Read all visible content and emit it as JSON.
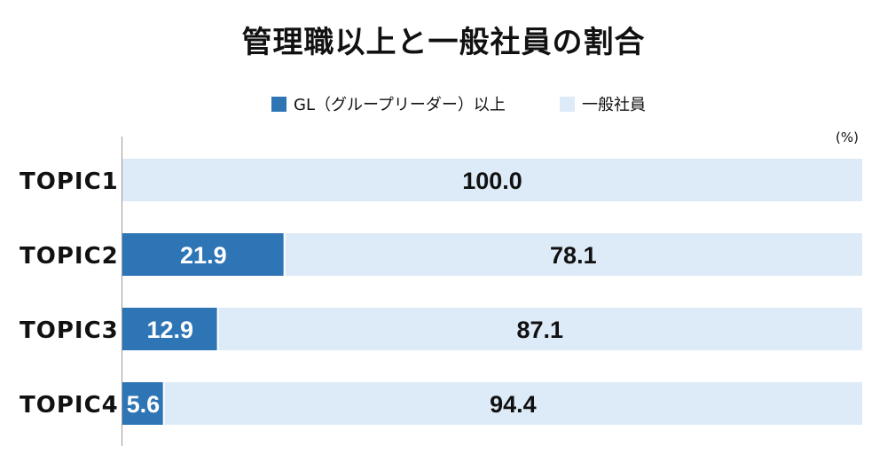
{
  "chart_data": {
    "type": "bar",
    "orientation": "horizontal",
    "stacked": true,
    "title": "管理職以上と一般社員の割合",
    "unit": "(%)",
    "categories": [
      "TOPIC1",
      "TOPIC2",
      "TOPIC3",
      "TOPIC4"
    ],
    "series": [
      {
        "name": "GL（グループリーダー）以上",
        "values": [
          0,
          21.9,
          12.9,
          5.6
        ],
        "color": "#2e75b6",
        "label_color": "#ffffff"
      },
      {
        "name": "一般社員",
        "values": [
          100.0,
          78.1,
          87.1,
          94.4
        ],
        "color": "#ddeaf7",
        "label_color": "#111111"
      }
    ],
    "xlim": [
      0,
      100
    ],
    "grid": false,
    "legend_position": "top-center"
  }
}
